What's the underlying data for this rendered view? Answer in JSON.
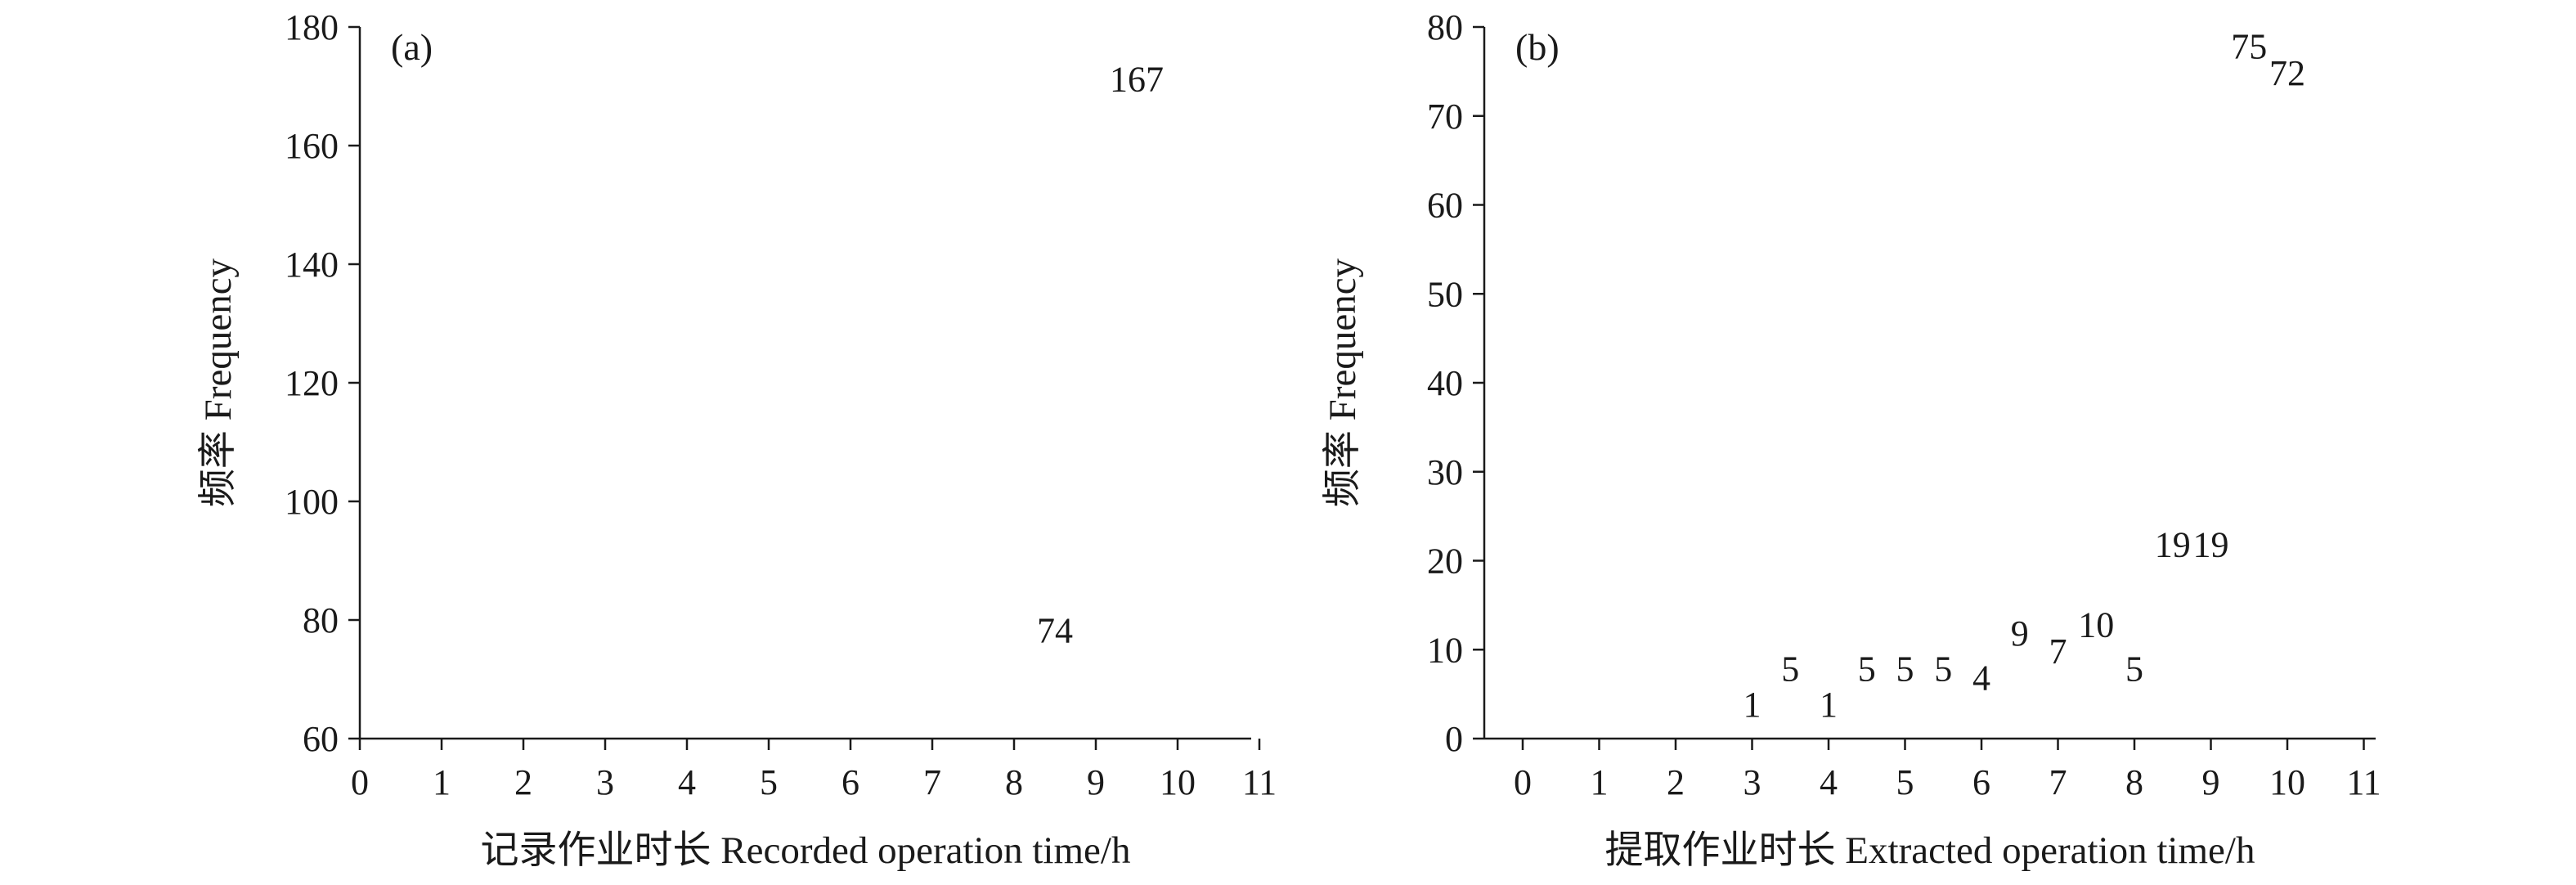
{
  "colors": {
    "bar_fill": "#b3cad6",
    "ink": "#1a1a1a"
  },
  "chart_data": [
    {
      "type": "bar",
      "panel_label": "(a)",
      "title": "",
      "xlabel": "记录作业时长 Recorded operation time/h",
      "ylabel": "频率 Frequency",
      "xlim": [
        0,
        11
      ],
      "ylim": [
        60,
        180
      ],
      "x_ticks": [
        0,
        1,
        2,
        3,
        4,
        5,
        6,
        7,
        8,
        9,
        10,
        11
      ],
      "y_ticks": [
        60,
        80,
        100,
        120,
        140,
        160,
        180
      ],
      "grid": false,
      "legend": "none",
      "bars": [
        {
          "x0": 8,
          "x1": 9,
          "value": 74
        },
        {
          "x0": 9,
          "x1": 10,
          "value": 167
        }
      ]
    },
    {
      "type": "bar",
      "panel_label": "(b)",
      "title": "",
      "xlabel": "提取作业时长 Extracted operation time/h",
      "ylabel": "频率 Frequency",
      "xlim": [
        -0.5,
        11
      ],
      "ylim": [
        0,
        80
      ],
      "x_ticks": [
        0,
        1,
        2,
        3,
        4,
        5,
        6,
        7,
        8,
        9,
        10,
        11
      ],
      "y_ticks": [
        0,
        10,
        20,
        30,
        40,
        50,
        60,
        70,
        80
      ],
      "grid": false,
      "legend": "none",
      "bars": [
        {
          "x0": 2.75,
          "x1": 3.25,
          "value": 1
        },
        {
          "x0": 3.25,
          "x1": 3.75,
          "value": 5
        },
        {
          "x0": 3.75,
          "x1": 4.25,
          "value": 1
        },
        {
          "x0": 4.25,
          "x1": 4.75,
          "value": 5
        },
        {
          "x0": 4.75,
          "x1": 5.25,
          "value": 5
        },
        {
          "x0": 5.25,
          "x1": 5.75,
          "value": 5
        },
        {
          "x0": 5.75,
          "x1": 6.25,
          "value": 4
        },
        {
          "x0": 6.25,
          "x1": 6.75,
          "value": 9
        },
        {
          "x0": 6.75,
          "x1": 7.25,
          "value": 7
        },
        {
          "x0": 7.25,
          "x1": 7.75,
          "value": 10
        },
        {
          "x0": 7.75,
          "x1": 8.25,
          "value": 5
        },
        {
          "x0": 8.25,
          "x1": 8.75,
          "value": 19
        },
        {
          "x0": 8.75,
          "x1": 9.25,
          "value": 19
        },
        {
          "x0": 9.25,
          "x1": 9.75,
          "value": 75
        },
        {
          "x0": 9.75,
          "x1": 10.25,
          "value": 72
        }
      ]
    }
  ]
}
